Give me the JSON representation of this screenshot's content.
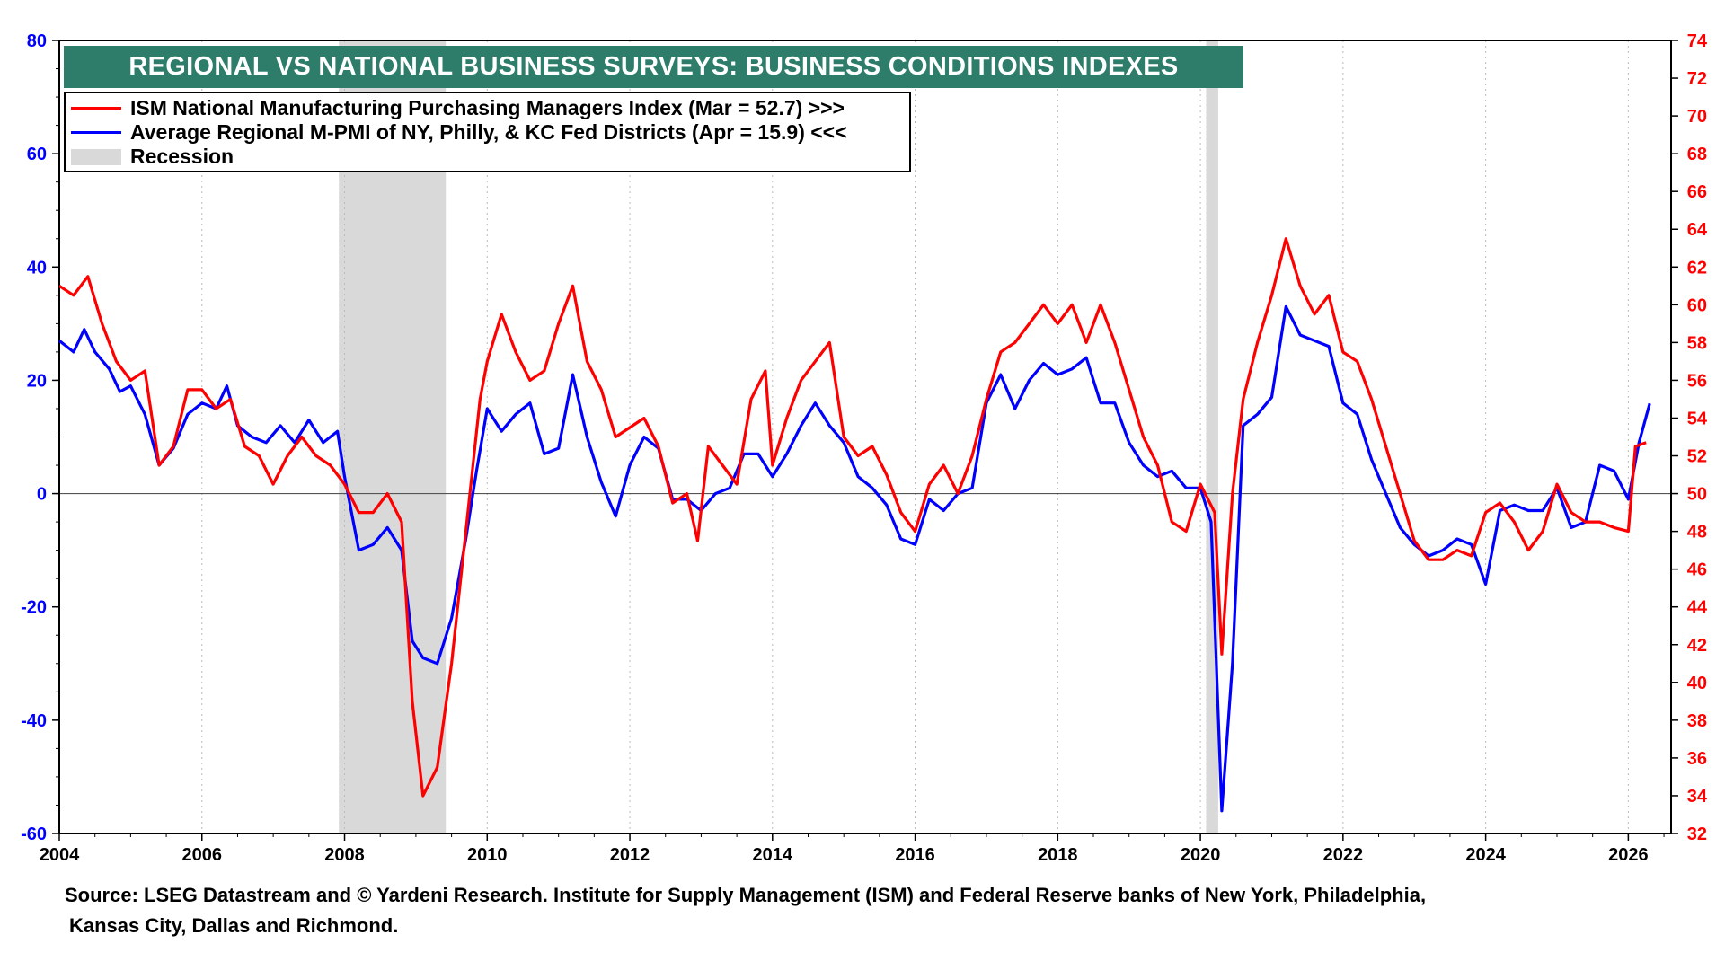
{
  "colors": {
    "ism": "#ff0000",
    "regional": "#0000ff",
    "recession": "#d9d9d9",
    "title_bg": "#2e7d6b",
    "grid": "#bbbbbb"
  },
  "chart_data": {
    "type": "line",
    "title": "REGIONAL VS NATIONAL BUSINESS SURVEYS: BUSINESS CONDITIONS INDEXES",
    "left_axis": {
      "min": -60,
      "max": 80,
      "ticks": [
        -60,
        -40,
        -20,
        0,
        20,
        40,
        60,
        80
      ]
    },
    "right_axis": {
      "min": 32,
      "max": 74,
      "ticks": [
        32,
        34,
        36,
        38,
        40,
        42,
        44,
        46,
        48,
        50,
        52,
        54,
        56,
        58,
        60,
        62,
        64,
        66,
        68,
        70,
        72,
        74
      ]
    },
    "x_axis": {
      "min": 2004,
      "max": 2026.6,
      "ticks": [
        2004,
        2006,
        2008,
        2010,
        2012,
        2014,
        2016,
        2018,
        2020,
        2022,
        2024,
        2026
      ]
    },
    "recessions": [
      {
        "start": 2007.92,
        "end": 2009.42
      },
      {
        "start": 2020.08,
        "end": 2020.25
      }
    ],
    "series": [
      {
        "name": "ISM National Manufacturing Purchasing Managers Index (Mar = 52.7) >>>",
        "axis": "right",
        "points": [
          [
            2004.0,
            61
          ],
          [
            2004.2,
            60.5
          ],
          [
            2004.4,
            61.5
          ],
          [
            2004.6,
            59
          ],
          [
            2004.8,
            57
          ],
          [
            2005.0,
            56
          ],
          [
            2005.2,
            56.5
          ],
          [
            2005.4,
            51.5
          ],
          [
            2005.6,
            52.5
          ],
          [
            2005.8,
            55.5
          ],
          [
            2006.0,
            55.5
          ],
          [
            2006.2,
            54.5
          ],
          [
            2006.4,
            55
          ],
          [
            2006.6,
            52.5
          ],
          [
            2006.8,
            52
          ],
          [
            2007.0,
            50.5
          ],
          [
            2007.2,
            52
          ],
          [
            2007.4,
            53
          ],
          [
            2007.6,
            52
          ],
          [
            2007.8,
            51.5
          ],
          [
            2008.0,
            50.5
          ],
          [
            2008.2,
            49
          ],
          [
            2008.4,
            49
          ],
          [
            2008.6,
            50
          ],
          [
            2008.8,
            48.5
          ],
          [
            2008.95,
            39
          ],
          [
            2009.1,
            34
          ],
          [
            2009.3,
            35.5
          ],
          [
            2009.5,
            41
          ],
          [
            2009.7,
            48
          ],
          [
            2009.9,
            55
          ],
          [
            2010.0,
            57
          ],
          [
            2010.2,
            59.5
          ],
          [
            2010.4,
            57.5
          ],
          [
            2010.6,
            56
          ],
          [
            2010.8,
            56.5
          ],
          [
            2011.0,
            59
          ],
          [
            2011.2,
            61
          ],
          [
            2011.4,
            57
          ],
          [
            2011.6,
            55.5
          ],
          [
            2011.8,
            53
          ],
          [
            2012.0,
            53.5
          ],
          [
            2012.2,
            54
          ],
          [
            2012.4,
            52.5
          ],
          [
            2012.6,
            49.5
          ],
          [
            2012.8,
            50
          ],
          [
            2012.95,
            47.5
          ],
          [
            2013.1,
            52.5
          ],
          [
            2013.3,
            51.5
          ],
          [
            2013.5,
            50.5
          ],
          [
            2013.7,
            55
          ],
          [
            2013.9,
            56.5
          ],
          [
            2014.0,
            51.5
          ],
          [
            2014.2,
            54
          ],
          [
            2014.4,
            56
          ],
          [
            2014.6,
            57
          ],
          [
            2014.8,
            58
          ],
          [
            2015.0,
            53
          ],
          [
            2015.2,
            52
          ],
          [
            2015.4,
            52.5
          ],
          [
            2015.6,
            51
          ],
          [
            2015.8,
            49
          ],
          [
            2016.0,
            48
          ],
          [
            2016.2,
            50.5
          ],
          [
            2016.4,
            51.5
          ],
          [
            2016.6,
            50
          ],
          [
            2016.8,
            52
          ],
          [
            2017.0,
            55
          ],
          [
            2017.2,
            57.5
          ],
          [
            2017.4,
            58
          ],
          [
            2017.6,
            59
          ],
          [
            2017.8,
            60
          ],
          [
            2018.0,
            59
          ],
          [
            2018.2,
            60
          ],
          [
            2018.4,
            58
          ],
          [
            2018.6,
            60
          ],
          [
            2018.8,
            58
          ],
          [
            2019.0,
            55.5
          ],
          [
            2019.2,
            53
          ],
          [
            2019.4,
            51.5
          ],
          [
            2019.6,
            48.5
          ],
          [
            2019.8,
            48
          ],
          [
            2020.0,
            50.5
          ],
          [
            2020.2,
            49
          ],
          [
            2020.3,
            41.5
          ],
          [
            2020.45,
            50
          ],
          [
            2020.6,
            55
          ],
          [
            2020.8,
            58
          ],
          [
            2021.0,
            60.5
          ],
          [
            2021.2,
            63.5
          ],
          [
            2021.4,
            61
          ],
          [
            2021.6,
            59.5
          ],
          [
            2021.8,
            60.5
          ],
          [
            2022.0,
            57.5
          ],
          [
            2022.2,
            57
          ],
          [
            2022.4,
            55
          ],
          [
            2022.6,
            52.5
          ],
          [
            2022.8,
            50
          ],
          [
            2023.0,
            47.5
          ],
          [
            2023.2,
            46.5
          ],
          [
            2023.4,
            46.5
          ],
          [
            2023.6,
            47
          ],
          [
            2023.8,
            46.7
          ],
          [
            2024.0,
            49
          ],
          [
            2024.2,
            49.5
          ],
          [
            2024.4,
            48.5
          ],
          [
            2024.6,
            47
          ],
          [
            2024.8,
            48
          ],
          [
            2025.0,
            50.5
          ],
          [
            2025.2,
            49
          ],
          [
            2025.4,
            48.5
          ],
          [
            2025.6,
            48.5
          ],
          [
            2025.8,
            48.2
          ],
          [
            2026.0,
            48
          ],
          [
            2026.1,
            52.5
          ],
          [
            2026.25,
            52.7
          ]
        ]
      },
      {
        "name": "Average Regional M-PMI of NY, Philly, & KC Fed Districts (Apr = 15.9) <<<",
        "axis": "left",
        "points": [
          [
            2004.0,
            27
          ],
          [
            2004.2,
            25
          ],
          [
            2004.35,
            29
          ],
          [
            2004.5,
            25
          ],
          [
            2004.7,
            22
          ],
          [
            2004.85,
            18
          ],
          [
            2005.0,
            19
          ],
          [
            2005.2,
            14
          ],
          [
            2005.4,
            5
          ],
          [
            2005.6,
            8
          ],
          [
            2005.8,
            14
          ],
          [
            2006.0,
            16
          ],
          [
            2006.2,
            15
          ],
          [
            2006.35,
            19
          ],
          [
            2006.5,
            12
          ],
          [
            2006.7,
            10
          ],
          [
            2006.9,
            9
          ],
          [
            2007.1,
            12
          ],
          [
            2007.3,
            9
          ],
          [
            2007.5,
            13
          ],
          [
            2007.7,
            9
          ],
          [
            2007.9,
            11
          ],
          [
            2008.0,
            3
          ],
          [
            2008.2,
            -10
          ],
          [
            2008.4,
            -9
          ],
          [
            2008.6,
            -6
          ],
          [
            2008.8,
            -10
          ],
          [
            2008.95,
            -26
          ],
          [
            2009.1,
            -29
          ],
          [
            2009.3,
            -30
          ],
          [
            2009.5,
            -22
          ],
          [
            2009.7,
            -8
          ],
          [
            2009.85,
            4
          ],
          [
            2010.0,
            15
          ],
          [
            2010.2,
            11
          ],
          [
            2010.4,
            14
          ],
          [
            2010.6,
            16
          ],
          [
            2010.8,
            7
          ],
          [
            2011.0,
            8
          ],
          [
            2011.2,
            21
          ],
          [
            2011.4,
            10
          ],
          [
            2011.6,
            2
          ],
          [
            2011.8,
            -4
          ],
          [
            2012.0,
            5
          ],
          [
            2012.2,
            10
          ],
          [
            2012.4,
            8
          ],
          [
            2012.6,
            -1
          ],
          [
            2012.8,
            -1
          ],
          [
            2013.0,
            -3
          ],
          [
            2013.2,
            0
          ],
          [
            2013.4,
            1
          ],
          [
            2013.6,
            7
          ],
          [
            2013.8,
            7
          ],
          [
            2014.0,
            3
          ],
          [
            2014.2,
            7
          ],
          [
            2014.4,
            12
          ],
          [
            2014.6,
            16
          ],
          [
            2014.8,
            12
          ],
          [
            2015.0,
            9
          ],
          [
            2015.2,
            3
          ],
          [
            2015.4,
            1
          ],
          [
            2015.6,
            -2
          ],
          [
            2015.8,
            -8
          ],
          [
            2016.0,
            -9
          ],
          [
            2016.2,
            -1
          ],
          [
            2016.4,
            -3
          ],
          [
            2016.6,
            0
          ],
          [
            2016.8,
            1
          ],
          [
            2017.0,
            16
          ],
          [
            2017.2,
            21
          ],
          [
            2017.4,
            15
          ],
          [
            2017.6,
            20
          ],
          [
            2017.8,
            23
          ],
          [
            2018.0,
            21
          ],
          [
            2018.2,
            22
          ],
          [
            2018.4,
            24
          ],
          [
            2018.6,
            16
          ],
          [
            2018.8,
            16
          ],
          [
            2019.0,
            9
          ],
          [
            2019.2,
            5
          ],
          [
            2019.4,
            3
          ],
          [
            2019.6,
            4
          ],
          [
            2019.8,
            1
          ],
          [
            2020.0,
            1
          ],
          [
            2020.15,
            -5
          ],
          [
            2020.3,
            -56
          ],
          [
            2020.45,
            -30
          ],
          [
            2020.6,
            12
          ],
          [
            2020.8,
            14
          ],
          [
            2021.0,
            17
          ],
          [
            2021.2,
            33
          ],
          [
            2021.4,
            28
          ],
          [
            2021.6,
            27
          ],
          [
            2021.8,
            26
          ],
          [
            2022.0,
            16
          ],
          [
            2022.2,
            14
          ],
          [
            2022.4,
            6
          ],
          [
            2022.6,
            0
          ],
          [
            2022.8,
            -6
          ],
          [
            2023.0,
            -9
          ],
          [
            2023.2,
            -11
          ],
          [
            2023.4,
            -10
          ],
          [
            2023.6,
            -8
          ],
          [
            2023.8,
            -9
          ],
          [
            2024.0,
            -16
          ],
          [
            2024.2,
            -3
          ],
          [
            2024.4,
            -2
          ],
          [
            2024.6,
            -3
          ],
          [
            2024.8,
            -3
          ],
          [
            2025.0,
            1
          ],
          [
            2025.2,
            -6
          ],
          [
            2025.4,
            -5
          ],
          [
            2025.6,
            5
          ],
          [
            2025.8,
            4
          ],
          [
            2026.0,
            -1
          ],
          [
            2026.15,
            9
          ],
          [
            2026.3,
            15.9
          ]
        ]
      }
    ],
    "legend_placement": "top-left"
  },
  "title": "REGIONAL VS NATIONAL BUSINESS SURVEYS: BUSINESS CONDITIONS INDEXES",
  "legend": {
    "ism": "ISM National Manufacturing Purchasing Managers Index (Mar = 52.7) >>>",
    "regional": "Average Regional M-PMI of NY, Philly, & KC Fed Districts (Apr = 15.9) <<<",
    "recession": "Recession"
  },
  "source": {
    "line1": "Source: LSEG Datastream and © Yardeni Research. Institute for Supply Management (ISM) and Federal Reserve banks of New York, Philadelphia,",
    "line2": "Kansas City, Dallas and Richmond."
  }
}
